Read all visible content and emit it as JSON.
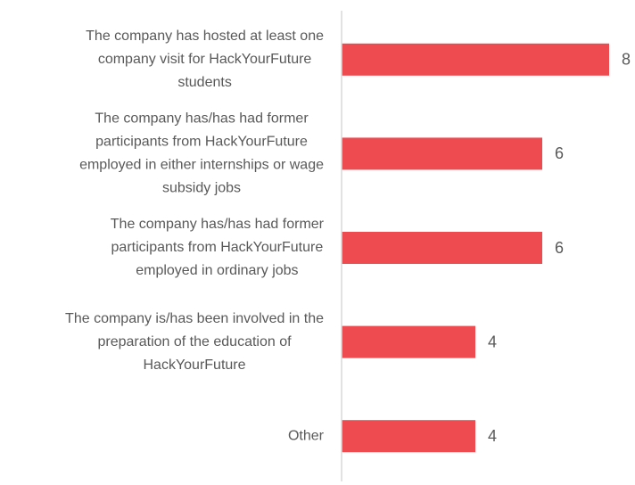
{
  "chart_data": {
    "type": "bar",
    "orientation": "horizontal",
    "categories": [
      [
        "The company has hosted at least one",
        "company visit for HackYourFuture",
        "students"
      ],
      [
        "The company has/has had former",
        "participants from HackYourFuture",
        "employed in either internships or wage",
        "subsidy jobs"
      ],
      [
        "The company has/has had former",
        "participants from HackYourFuture",
        "employed in ordinary jobs"
      ],
      [
        "The company is/has been involved in the",
        "preparation of the education of",
        "HackYourFuture"
      ],
      [
        "Other"
      ]
    ],
    "values": [
      8,
      6,
      6,
      4,
      4
    ],
    "color": "#ee4b50"
  }
}
